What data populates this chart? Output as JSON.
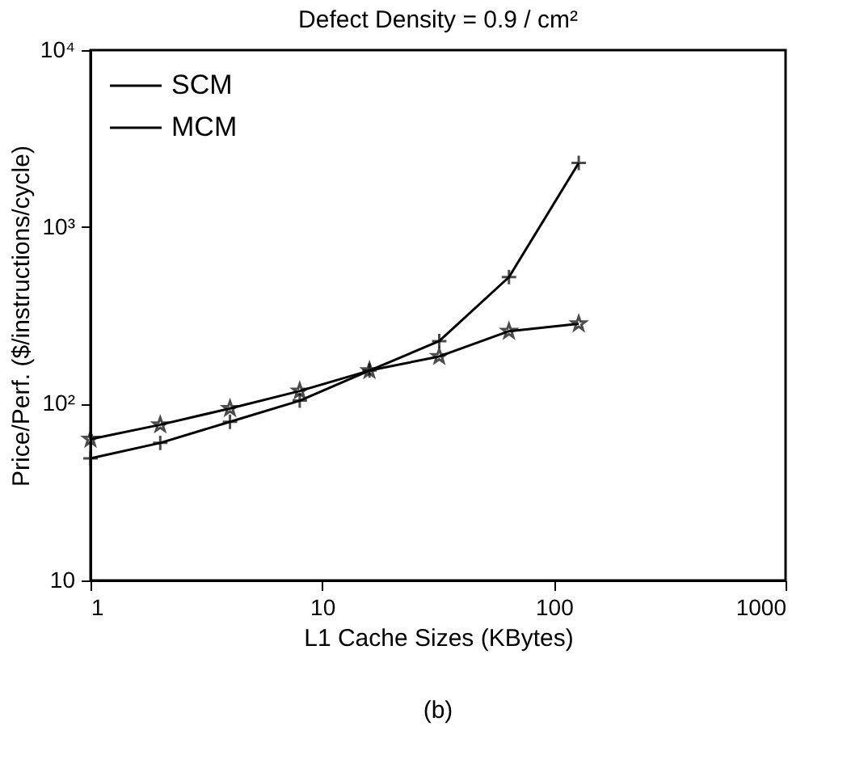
{
  "chart_data": {
    "type": "line",
    "title": "Defect Density = 0.9 / cm²",
    "xlabel": "L1 Cache Sizes (KBytes)",
    "ylabel": "Price/Perf. ($/instructions/cycle)",
    "x": [
      1,
      2,
      4,
      8,
      16,
      32,
      64,
      128
    ],
    "series": [
      {
        "name": "SCM",
        "color": "#000000",
        "marker": "cross",
        "values": [
          49,
          60,
          79,
          104,
          154,
          226,
          520,
          2300
        ]
      },
      {
        "name": "MCM",
        "color": "#000000",
        "marker": "star",
        "values": [
          63,
          76,
          94,
          118,
          154,
          185,
          257,
          283
        ]
      }
    ],
    "log": "xy",
    "xlim": [
      1,
      1000
    ],
    "xticks": [
      1,
      10,
      100,
      1000
    ],
    "ylim": [
      10,
      10000
    ],
    "yticks": [
      10,
      {
        "value": 100,
        "label": "10²"
      },
      {
        "value": 1000,
        "label": "10³"
      },
      {
        "value": 10000,
        "label": "10⁴"
      }
    ],
    "grid": false,
    "legend": "top left",
    "line_style": "solid",
    "annotations": [
      "(b)"
    ]
  }
}
